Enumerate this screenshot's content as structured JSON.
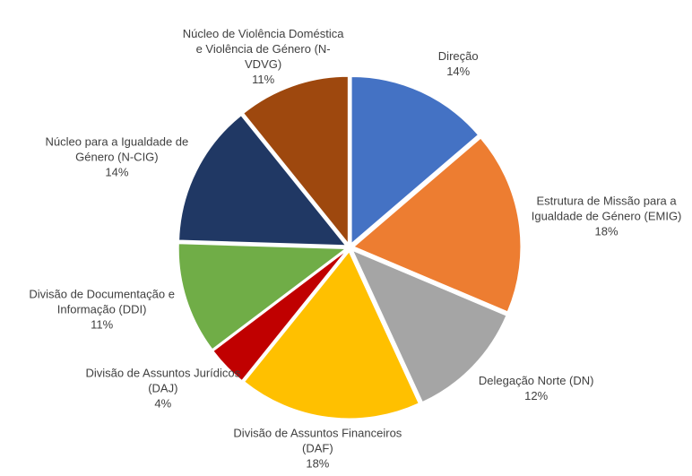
{
  "chart_data": {
    "type": "pie",
    "categories": [
      "Direção",
      "Estrutura de Missão para a Igualdade de Género (EMIG)",
      "Delegação Norte (DN)",
      "Divisão de Assuntos Financeiros (DAF)",
      "Divisão de Assuntos Jurídicos (DAJ)",
      "Divisão de Documentação e Informação (DDI)",
      "Núcleo para a Igualdade de Género (N-CIG)",
      "Núcleo de Violência Doméstica e Violência de Género (N-VDVG)"
    ],
    "values": [
      14,
      18,
      12,
      18,
      4,
      11,
      14,
      11
    ],
    "value_labels": [
      "14%",
      "18%",
      "12%",
      "18%",
      "4%",
      "11%",
      "14%",
      "11%"
    ],
    "colors": [
      "#4472c4",
      "#ed7d31",
      "#a5a5a5",
      "#ffc000",
      "#c00000",
      "#70ad47",
      "#203864",
      "#9e480e"
    ]
  }
}
